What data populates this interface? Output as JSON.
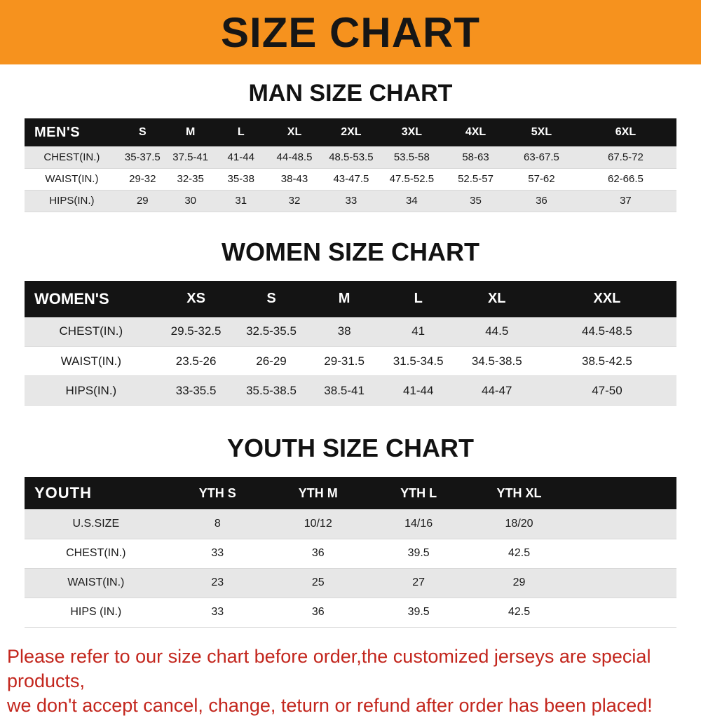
{
  "banner": {
    "title": "SIZE CHART",
    "bg_color": "#F6921E",
    "text_color": "#161616"
  },
  "sections": [
    {
      "heading": "MAN SIZE CHART",
      "table_name": "mens-size-table",
      "header": [
        "MEN'S",
        "S",
        "M",
        "L",
        "XL",
        "2XL",
        "3XL",
        "4XL",
        "5XL",
        "6XL"
      ],
      "rows": [
        [
          "CHEST(IN.)",
          "35-37.5",
          "37.5-41",
          "41-44",
          "44-48.5",
          "48.5-53.5",
          "53.5-58",
          "58-63",
          "63-67.5",
          "67.5-72"
        ],
        [
          "WAIST(IN.)",
          "29-32",
          "32-35",
          "35-38",
          "38-43",
          "43-47.5",
          "47.5-52.5",
          "52.5-57",
          "57-62",
          "62-66.5"
        ],
        [
          "HIPS(IN.)",
          "29",
          "30",
          "31",
          "32",
          "33",
          "34",
          "35",
          "36",
          "37"
        ]
      ]
    },
    {
      "heading": "WOMEN SIZE CHART",
      "table_name": "womens-size-table",
      "header": [
        "WOMEN'S",
        "XS",
        "S",
        "M",
        "L",
        "XL",
        "XXL"
      ],
      "rows": [
        [
          "CHEST(IN.)",
          "29.5-32.5",
          "32.5-35.5",
          "38",
          "41",
          "44.5",
          "44.5-48.5"
        ],
        [
          "WAIST(IN.)",
          "23.5-26",
          "26-29",
          "29-31.5",
          "31.5-34.5",
          "34.5-38.5",
          "38.5-42.5"
        ],
        [
          "HIPS(IN.)",
          "33-35.5",
          "35.5-38.5",
          "38.5-41",
          "41-44",
          "44-47",
          "47-50"
        ]
      ]
    },
    {
      "heading": "YOUTH SIZE CHART",
      "table_name": "youth-size-table",
      "header": [
        "YOUTH",
        "YTH S",
        "YTH M",
        "YTH L",
        "YTH XL"
      ],
      "rows": [
        [
          "U.S.SIZE",
          "8",
          "10/12",
          "14/16",
          "18/20"
        ],
        [
          "CHEST(IN.)",
          "33",
          "36",
          "39.5",
          "42.5"
        ],
        [
          "WAIST(IN.)",
          "23",
          "25",
          "27",
          "29"
        ],
        [
          "HIPS (IN.)",
          "33",
          "36",
          "39.5",
          "42.5"
        ]
      ]
    }
  ],
  "footer": {
    "lines": [
      "Please refer to our size chart before order,the customized jerseys are special products,",
      "we don't accept cancel, change, teturn or refund after order has been placed!"
    ],
    "text_color": "#C3261D"
  },
  "colors": {
    "header_bg": "#141414",
    "stripe_bg": "#e7e7e7"
  }
}
